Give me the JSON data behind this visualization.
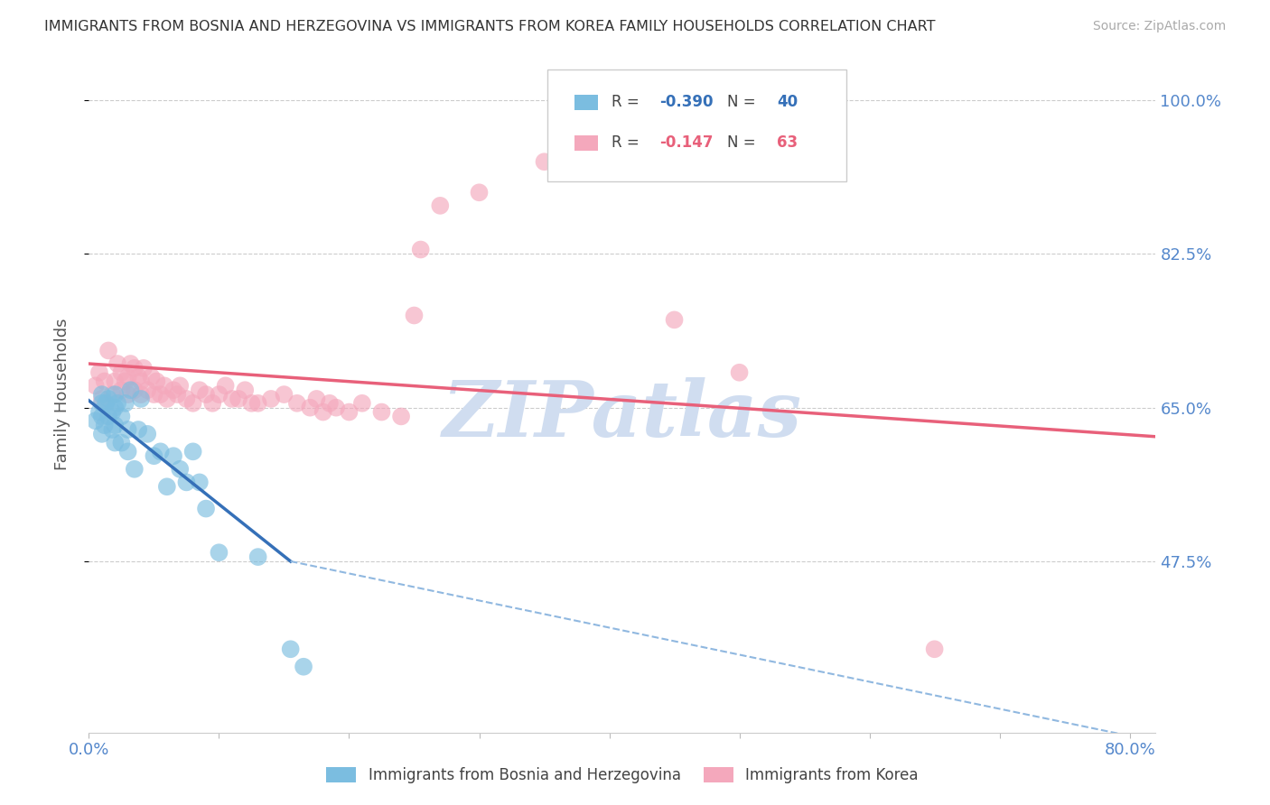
{
  "title": "IMMIGRANTS FROM BOSNIA AND HERZEGOVINA VS IMMIGRANTS FROM KOREA FAMILY HOUSEHOLDS CORRELATION CHART",
  "source": "Source: ZipAtlas.com",
  "ylabel": "Family Households",
  "xlim": [
    0.0,
    0.82
  ],
  "ylim": [
    0.28,
    1.05
  ],
  "ytick_positions": [
    0.475,
    0.65,
    0.825,
    1.0
  ],
  "ytick_labels": [
    "47.5%",
    "65.0%",
    "82.5%",
    "100.0%"
  ],
  "xtick_positions": [
    0.0,
    0.1,
    0.2,
    0.3,
    0.4,
    0.5,
    0.6,
    0.7,
    0.8
  ],
  "xtick_labels": [
    "0.0%",
    "",
    "",
    "",
    "",
    "",
    "",
    "",
    "80.0%"
  ],
  "blue_color": "#7bbde0",
  "pink_color": "#f4a8bc",
  "trend_blue_color": "#3570b8",
  "trend_pink_color": "#e8607a",
  "trend_blue_dash_color": "#90b8e0",
  "watermark": "ZIPatlas",
  "watermark_color": "#d0ddf0",
  "legend_blue_R": "-0.390",
  "legend_blue_N": "40",
  "legend_pink_R": "-0.147",
  "legend_pink_N": "63",
  "blue_scatter_x": [
    0.005,
    0.008,
    0.01,
    0.01,
    0.01,
    0.01,
    0.012,
    0.013,
    0.015,
    0.015,
    0.018,
    0.018,
    0.02,
    0.02,
    0.02,
    0.02,
    0.022,
    0.025,
    0.025,
    0.028,
    0.03,
    0.03,
    0.032,
    0.035,
    0.038,
    0.04,
    0.045,
    0.05,
    0.055,
    0.06,
    0.065,
    0.07,
    0.075,
    0.08,
    0.085,
    0.09,
    0.1,
    0.13,
    0.155,
    0.165
  ],
  "blue_scatter_y": [
    0.635,
    0.645,
    0.62,
    0.64,
    0.655,
    0.665,
    0.63,
    0.655,
    0.64,
    0.66,
    0.625,
    0.645,
    0.61,
    0.63,
    0.65,
    0.665,
    0.655,
    0.61,
    0.64,
    0.655,
    0.6,
    0.625,
    0.67,
    0.58,
    0.625,
    0.66,
    0.62,
    0.595,
    0.6,
    0.56,
    0.595,
    0.58,
    0.565,
    0.6,
    0.565,
    0.535,
    0.485,
    0.48,
    0.375,
    0.355
  ],
  "pink_scatter_x": [
    0.005,
    0.008,
    0.01,
    0.012,
    0.015,
    0.018,
    0.02,
    0.022,
    0.025,
    0.025,
    0.028,
    0.03,
    0.03,
    0.032,
    0.035,
    0.035,
    0.038,
    0.04,
    0.04,
    0.042,
    0.045,
    0.048,
    0.05,
    0.052,
    0.055,
    0.058,
    0.06,
    0.065,
    0.068,
    0.07,
    0.075,
    0.08,
    0.085,
    0.09,
    0.095,
    0.1,
    0.105,
    0.11,
    0.115,
    0.12,
    0.125,
    0.13,
    0.14,
    0.15,
    0.16,
    0.17,
    0.175,
    0.18,
    0.185,
    0.19,
    0.2,
    0.21,
    0.225,
    0.24,
    0.25,
    0.255,
    0.27,
    0.3,
    0.35,
    0.42,
    0.45,
    0.5,
    0.65
  ],
  "pink_scatter_y": [
    0.675,
    0.69,
    0.66,
    0.68,
    0.715,
    0.665,
    0.68,
    0.7,
    0.67,
    0.69,
    0.68,
    0.665,
    0.685,
    0.7,
    0.67,
    0.695,
    0.685,
    0.665,
    0.68,
    0.695,
    0.67,
    0.685,
    0.665,
    0.68,
    0.665,
    0.675,
    0.66,
    0.67,
    0.665,
    0.675,
    0.66,
    0.655,
    0.67,
    0.665,
    0.655,
    0.665,
    0.675,
    0.66,
    0.66,
    0.67,
    0.655,
    0.655,
    0.66,
    0.665,
    0.655,
    0.65,
    0.66,
    0.645,
    0.655,
    0.65,
    0.645,
    0.655,
    0.645,
    0.64,
    0.755,
    0.83,
    0.88,
    0.895,
    0.93,
    0.975,
    0.75,
    0.69,
    0.375
  ],
  "trend_blue_x0": 0.0,
  "trend_blue_y0": 0.658,
  "trend_blue_x1_solid": 0.155,
  "trend_blue_y1_solid": 0.475,
  "trend_blue_x1_dash": 0.82,
  "trend_blue_y1_dash": 0.27,
  "trend_pink_x0": 0.0,
  "trend_pink_y0": 0.7,
  "trend_pink_x1": 0.82,
  "trend_pink_y1": 0.617
}
